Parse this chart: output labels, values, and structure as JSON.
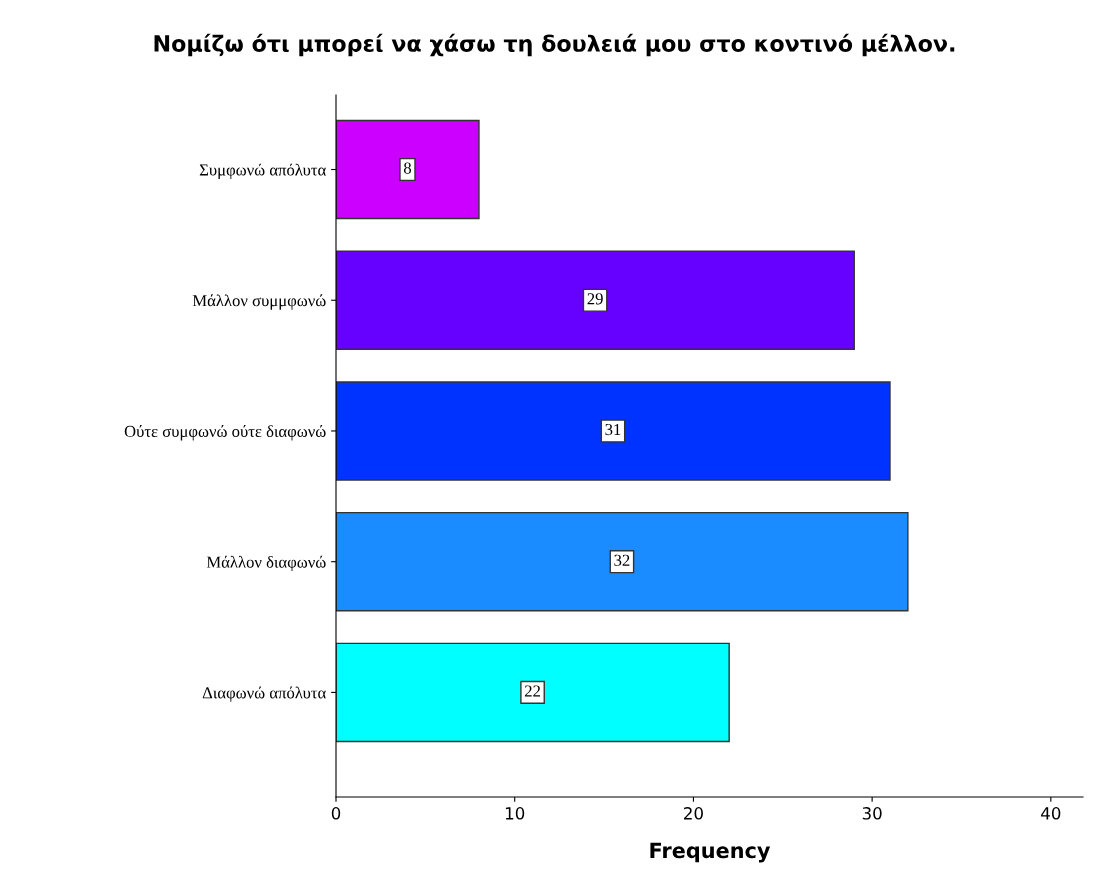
{
  "chart_data": {
    "type": "bar",
    "orientation": "horizontal",
    "title": "Νομίζω ότι μπορεί να χάσω τη δουλειά μου στο κοντινό μέλλον.",
    "xlabel": "Frequency",
    "categories": [
      "Συμφωνώ απόλυτα",
      "Μάλλον συμμφωνώ",
      "Ούτε συμφωνώ ούτε διαφωνώ",
      "Μάλλον διαφωνώ",
      "Διαφωνώ απόλυτα"
    ],
    "values": [
      8,
      29,
      31,
      32,
      22
    ],
    "colors": [
      "#cc00ff",
      "#6600ff",
      "#0033ff",
      "#1a8cff",
      "#00ffff"
    ],
    "xlim": [
      0,
      41.8
    ],
    "xticks": [
      0,
      10,
      20,
      30,
      40
    ],
    "data_labels": true,
    "grid": false
  }
}
